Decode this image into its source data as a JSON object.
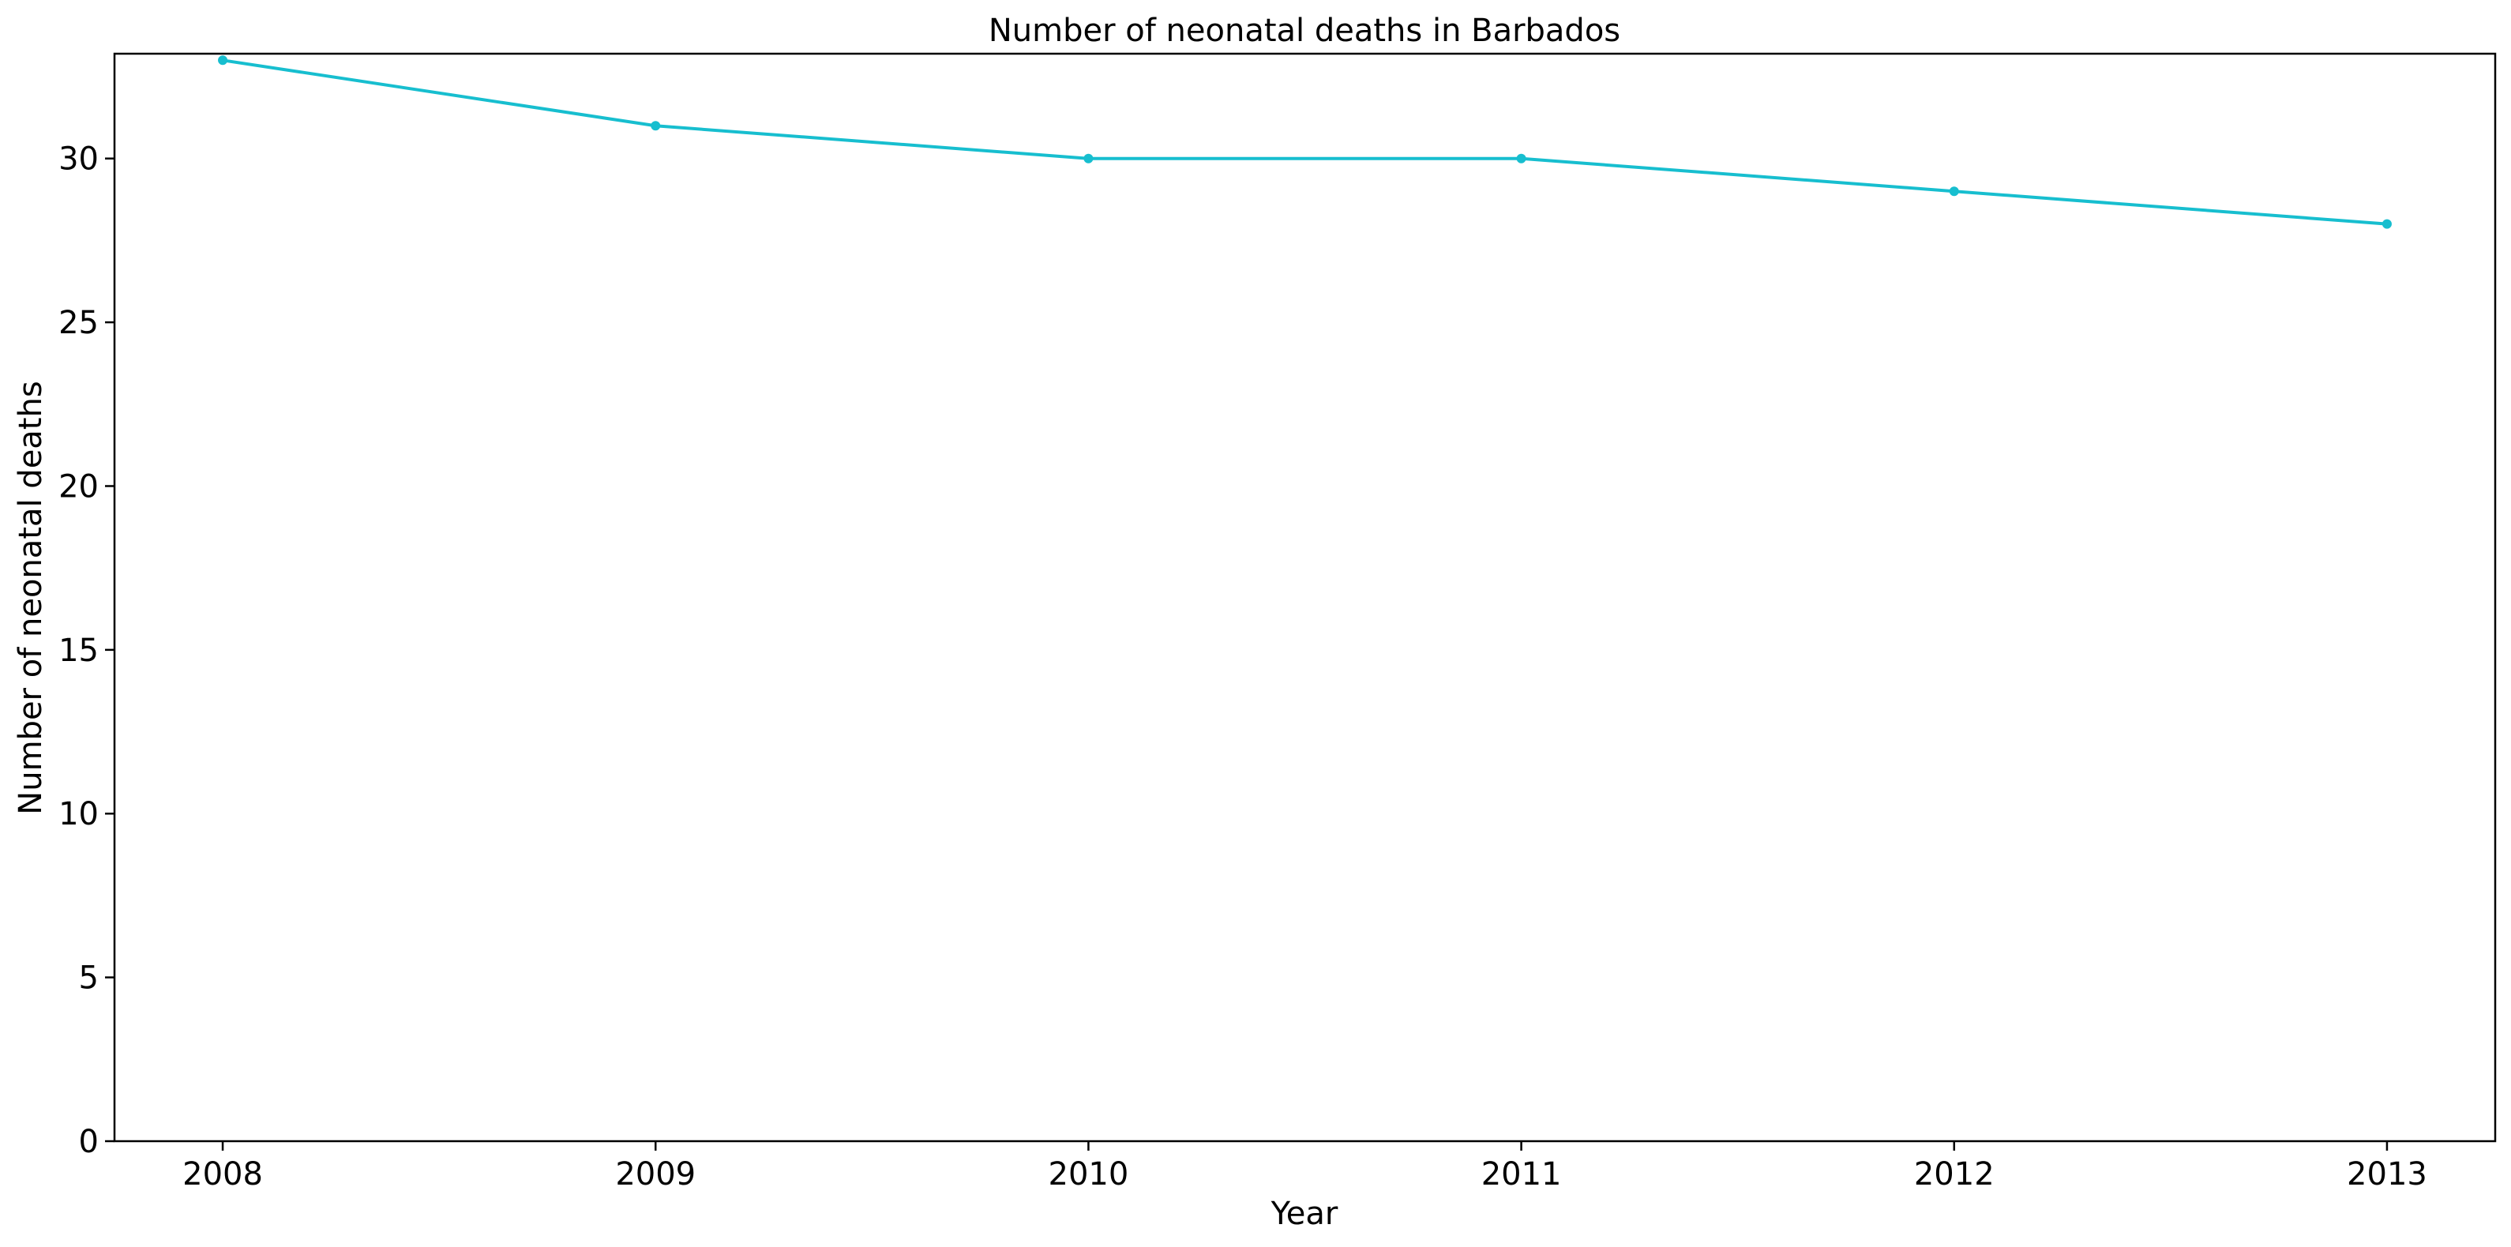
{
  "chart_data": {
    "type": "line",
    "title": "Number of neonatal deaths in Barbados",
    "xlabel": "Year",
    "ylabel": "Number of neonatal deaths",
    "x": [
      2008,
      2009,
      2010,
      2011,
      2012,
      2013
    ],
    "series": [
      {
        "values": [
          33,
          31,
          30,
          30,
          29,
          28
        ],
        "color": "#17becf"
      }
    ],
    "xlim": [
      2007.75,
      2013.25
    ],
    "ylim": [
      0,
      33.2
    ],
    "xticks": [
      2008,
      2009,
      2010,
      2011,
      2012,
      2013
    ],
    "yticks": [
      0,
      5,
      10,
      15,
      20,
      25,
      30
    ],
    "grid": false,
    "marker": "circle"
  }
}
